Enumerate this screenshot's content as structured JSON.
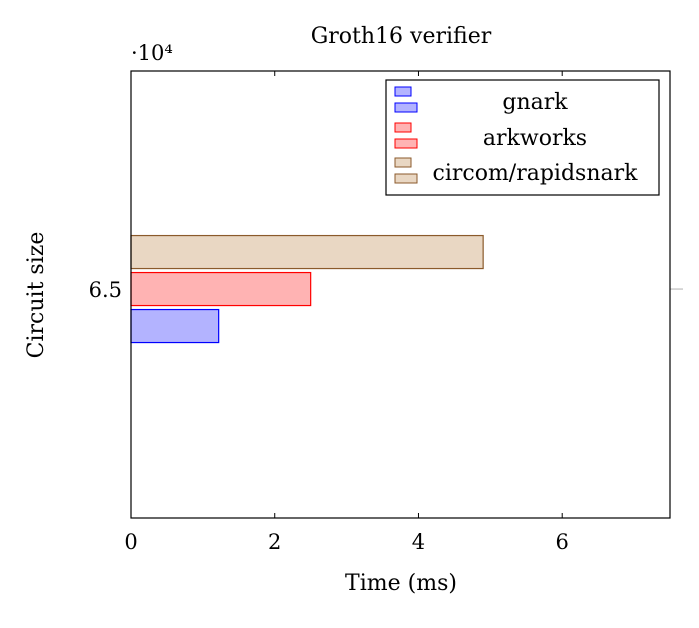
{
  "chart_data": {
    "type": "bar",
    "orientation": "horizontal",
    "title": "Groth16 verifier",
    "xlabel": "Time (ms)",
    "ylabel": "Circuit size",
    "y_scale_label": "·10⁴",
    "xlim": [
      0,
      7.5
    ],
    "x_ticks": [
      "0",
      "2",
      "4",
      "6"
    ],
    "x_tick_values": [
      0,
      2,
      4,
      6
    ],
    "y_ticks": [
      "6.5"
    ],
    "y_tick_values": [
      6.5
    ],
    "ylim": [
      4.4,
      8.5
    ],
    "categories": [
      6.5
    ],
    "series": [
      {
        "name": "gnark",
        "values": [
          1.22
        ],
        "fill": "#b3b3ff",
        "stroke": "#0000ff"
      },
      {
        "name": "arkworks",
        "values": [
          2.5
        ],
        "fill": "#ffb3b3",
        "stroke": "#ff0000"
      },
      {
        "name": "circom/rapidsnark",
        "values": [
          4.9
        ],
        "fill": "#e9d7c3",
        "stroke": "#8b5a2b"
      }
    ],
    "legend_position": "top-right",
    "grid": false
  }
}
